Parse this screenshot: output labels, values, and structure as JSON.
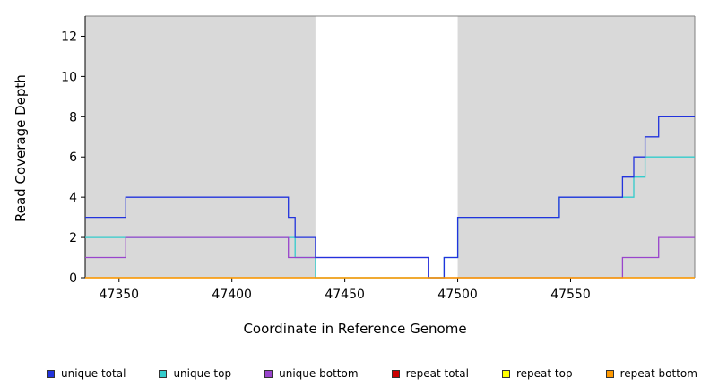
{
  "chart_data": {
    "type": "line",
    "step": true,
    "title": "",
    "xlabel": "Coordinate in Reference Genome",
    "ylabel": "Read Coverage Depth",
    "xlim": [
      47335,
      47605
    ],
    "ylim": [
      0,
      13
    ],
    "xticks": [
      47350,
      47400,
      47450,
      47500,
      47550
    ],
    "yticks": [
      0,
      2,
      4,
      6,
      8,
      10,
      12
    ],
    "grid": false,
    "legend_position": "bottom",
    "shaded_region_color": "#d9d9d9",
    "shaded_regions": [
      {
        "x0": 47335,
        "x1": 47437
      },
      {
        "x0": 47500,
        "x1": 47605
      }
    ],
    "series": [
      {
        "name": "unique top",
        "color": "#33cccc",
        "points": [
          [
            47335,
            2
          ],
          [
            47428,
            1
          ],
          [
            47437,
            0
          ],
          [
            47494,
            1
          ],
          [
            47500,
            3
          ],
          [
            47545,
            4
          ],
          [
            47578,
            5
          ],
          [
            47583,
            6
          ],
          [
            47605,
            6
          ]
        ]
      },
      {
        "name": "unique bottom",
        "color": "#9944cc",
        "points": [
          [
            47335,
            1
          ],
          [
            47353,
            2
          ],
          [
            47425,
            1
          ],
          [
            47487,
            0
          ],
          [
            47573,
            1
          ],
          [
            47589,
            2
          ],
          [
            47605,
            2
          ]
        ]
      },
      {
        "name": "unique total",
        "color": "#2233dd",
        "points": [
          [
            47335,
            3
          ],
          [
            47353,
            4
          ],
          [
            47425,
            3
          ],
          [
            47428,
            2
          ],
          [
            47437,
            1
          ],
          [
            47487,
            0
          ],
          [
            47494,
            1
          ],
          [
            47500,
            3
          ],
          [
            47545,
            4
          ],
          [
            47573,
            5
          ],
          [
            47578,
            6
          ],
          [
            47583,
            7
          ],
          [
            47589,
            8
          ],
          [
            47605,
            8
          ]
        ]
      },
      {
        "name": "repeat total",
        "color": "#cc0000",
        "points": [
          [
            47335,
            0
          ],
          [
            47605,
            0
          ]
        ]
      },
      {
        "name": "repeat top",
        "color": "#ffff00",
        "points": [
          [
            47335,
            0
          ],
          [
            47605,
            0
          ]
        ]
      },
      {
        "name": "repeat bottom",
        "color": "#ff9900",
        "points": [
          [
            47335,
            0
          ],
          [
            47605,
            0
          ]
        ]
      }
    ],
    "legend_order": [
      "unique total",
      "unique top",
      "unique bottom",
      "repeat total",
      "repeat top",
      "repeat bottom"
    ]
  }
}
